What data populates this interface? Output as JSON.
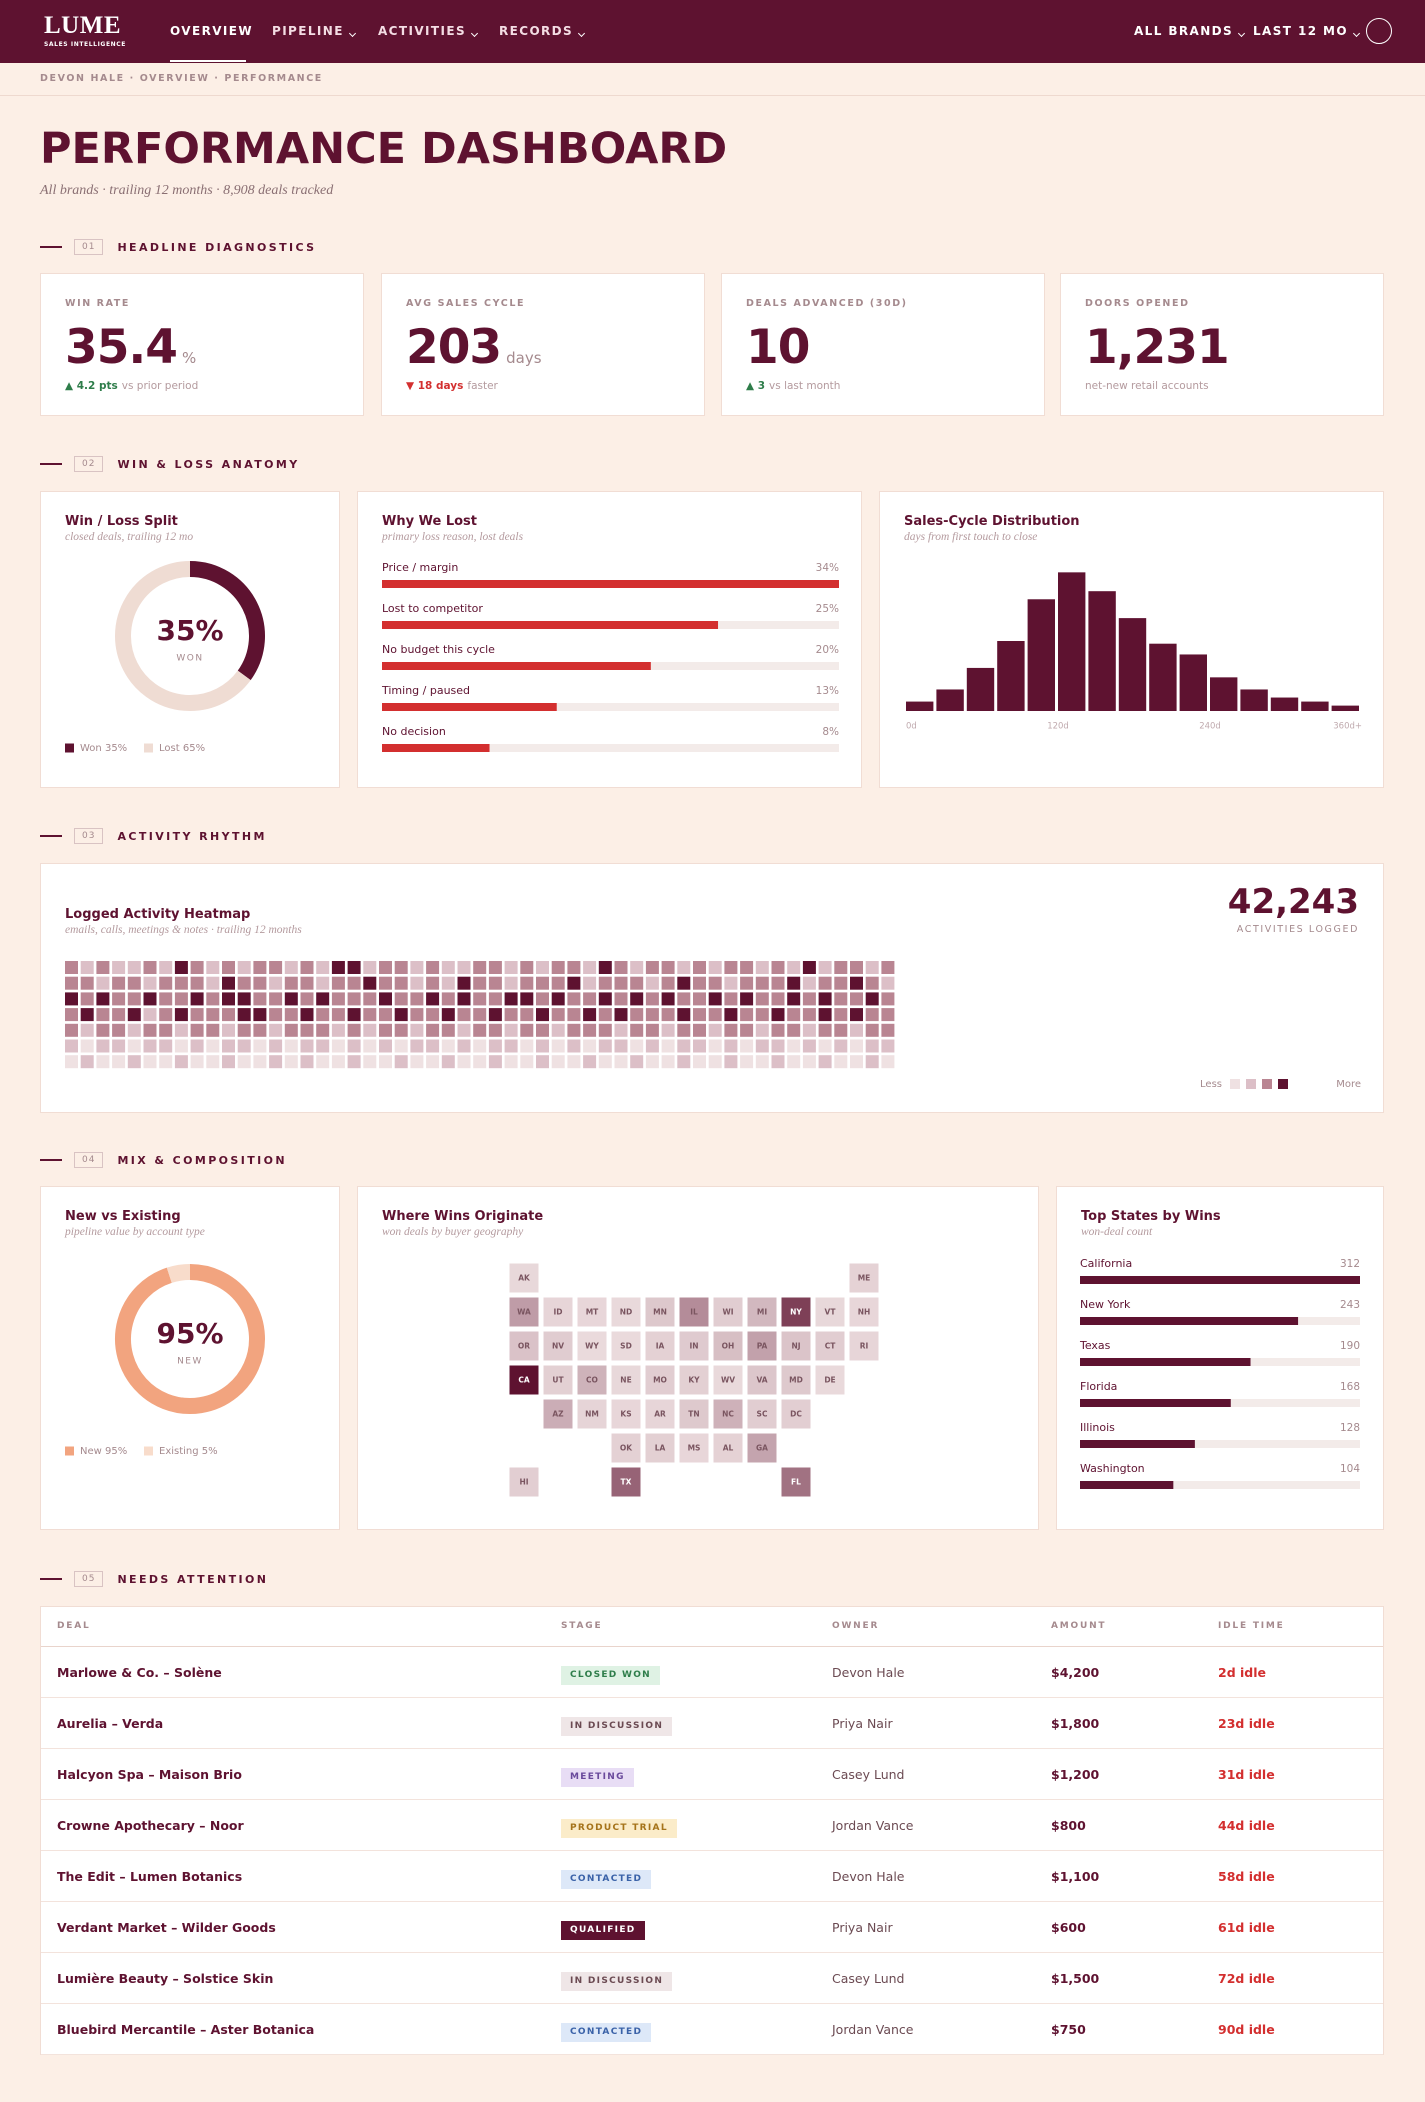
{
  "nav": {
    "brand": "LUME",
    "tagline": "SALES INTELLIGENCE",
    "links": [
      "OVERVIEW",
      "PIPELINE",
      "ACTIVITIES",
      "RECORDS"
    ],
    "filters": [
      "ALL BRANDS",
      "LAST 12 MO"
    ]
  },
  "breadcrumb": "DEVON HALE · OVERVIEW · PERFORMANCE",
  "header": {
    "title": "PERFORMANCE DASHBOARD",
    "subtitle": "All brands · trailing 12 months · 8,908 deals tracked"
  },
  "sections": [
    {
      "number": "01",
      "title": "HEADLINE DIAGNOSTICS"
    },
    {
      "number": "02",
      "title": "WIN & LOSS ANATOMY"
    },
    {
      "number": "03",
      "title": "ACTIVITY RHYTHM"
    },
    {
      "number": "04",
      "title": "MIX & COMPOSITION"
    },
    {
      "number": "05",
      "title": "NEEDS ATTENTION"
    }
  ],
  "kpis": [
    {
      "label": "WIN RATE",
      "value": "35.4",
      "unit": "%",
      "delta": "▲ 4.2 pts",
      "note": "vs prior period",
      "delta_color": "#2e7d4a"
    },
    {
      "label": "AVG SALES CYCLE",
      "value": "203",
      "unit": "days",
      "delta": "▼ 18 days",
      "note": "faster",
      "delta_color": "#d32f2f"
    },
    {
      "label": "DEALS ADVANCED (30D)",
      "value": "10",
      "delta": "▲ 3",
      "note": "vs last month",
      "delta_color": "#2e7d4a"
    },
    {
      "label": "DOORS OPENED",
      "value": "1,231",
      "note": "net-new retail accounts"
    }
  ],
  "charts": {
    "win_loss": {
      "type": "pie",
      "title": "Win / Loss Split",
      "subtitle": "closed deals, trailing 12 mo",
      "center_label": "WON",
      "categories": [
        "Won",
        "Lost"
      ],
      "values": [
        35,
        65
      ],
      "value_labels": [
        "35%",
        "65%"
      ],
      "colors": [
        "#5e1230",
        "#efdcd3"
      ]
    },
    "loss_reasons": {
      "type": "bar",
      "title": "Why We Lost",
      "subtitle": "primary loss reason, lost deals",
      "categories": [
        "Price / margin",
        "Lost to competitor",
        "No budget this cycle",
        "Timing / paused",
        "No decision"
      ],
      "values": [
        34,
        25,
        20,
        13,
        8
      ],
      "value_labels": [
        "34%",
        "25%",
        "20%",
        "13%",
        "8%"
      ],
      "xlim": [
        0,
        34
      ],
      "color": "#d32f2f",
      "track_color": "#f3ebe9"
    },
    "cycle": {
      "type": "histogram",
      "title": "Sales-Cycle Distribution",
      "subtitle": "days from first touch to close",
      "bins": [
        0,
        24,
        48,
        72,
        96,
        120,
        144,
        168,
        192,
        216,
        240,
        264,
        288,
        312,
        336,
        360
      ],
      "values": [
        35,
        80,
        160,
        260,
        415,
        515,
        445,
        345,
        250,
        210,
        125,
        80,
        50,
        35,
        20
      ],
      "ylim": [
        0,
        520
      ],
      "xticks": [
        {
          "value": 0,
          "label": "0d"
        },
        {
          "value": 120,
          "label": "120d"
        },
        {
          "value": 240,
          "label": "240d"
        },
        {
          "value": 360,
          "label": "360d+"
        }
      ],
      "color": "#5e1230"
    },
    "activity": {
      "type": "heatmap",
      "title": "Logged Activity Heatmap",
      "subtitle": "emails, calls, meetings & notes · trailing 12 months",
      "total": "42,243",
      "total_label": "ACTIVITIES LOGGED",
      "legend": [
        "Less",
        "More"
      ],
      "colors": [
        "#efe1e2",
        "#dcbfc7",
        "#b98592",
        "#5e1230"
      ],
      "values": [
        [
          2,
          1,
          2,
          1,
          1,
          2,
          1,
          3,
          2,
          1,
          2,
          1,
          2,
          2,
          1,
          2,
          1,
          3,
          3,
          1,
          2,
          2,
          1,
          2,
          1,
          1,
          2,
          2,
          1,
          2,
          1,
          2,
          2,
          1,
          3,
          2,
          1,
          2,
          2,
          1,
          2,
          1,
          2,
          2,
          1,
          2,
          1,
          3,
          1,
          2,
          2,
          1,
          2
        ],
        [
          2,
          2,
          1,
          2,
          2,
          1,
          2,
          2,
          2,
          1,
          3,
          2,
          2,
          1,
          2,
          2,
          1,
          2,
          2,
          3,
          2,
          2,
          1,
          2,
          1,
          3,
          2,
          2,
          1,
          2,
          2,
          2,
          3,
          1,
          2,
          2,
          2,
          1,
          2,
          3,
          2,
          2,
          1,
          2,
          2,
          2,
          3,
          1,
          2,
          2,
          3,
          2,
          1
        ],
        [
          3,
          2,
          3,
          2,
          2,
          3,
          2,
          2,
          3,
          2,
          3,
          3,
          2,
          2,
          3,
          2,
          3,
          2,
          2,
          2,
          3,
          2,
          2,
          3,
          2,
          3,
          2,
          2,
          3,
          3,
          2,
          3,
          2,
          2,
          3,
          2,
          3,
          2,
          3,
          2,
          2,
          3,
          2,
          3,
          2,
          2,
          3,
          2,
          3,
          2,
          2,
          3,
          2
        ],
        [
          2,
          3,
          2,
          2,
          3,
          1,
          2,
          3,
          2,
          2,
          2,
          3,
          3,
          2,
          2,
          3,
          2,
          2,
          3,
          2,
          2,
          3,
          2,
          2,
          3,
          2,
          2,
          3,
          2,
          2,
          3,
          2,
          2,
          3,
          2,
          3,
          2,
          2,
          2,
          3,
          2,
          2,
          3,
          2,
          2,
          3,
          2,
          2,
          3,
          2,
          3,
          2,
          2
        ],
        [
          2,
          1,
          2,
          2,
          1,
          2,
          2,
          1,
          2,
          2,
          1,
          2,
          2,
          1,
          2,
          2,
          2,
          1,
          2,
          1,
          2,
          2,
          1,
          2,
          2,
          1,
          2,
          2,
          1,
          2,
          2,
          1,
          2,
          2,
          2,
          1,
          2,
          2,
          1,
          2,
          2,
          1,
          2,
          2,
          1,
          2,
          2,
          1,
          2,
          2,
          1,
          2,
          2
        ],
        [
          1,
          0,
          1,
          1,
          0,
          1,
          1,
          0,
          1,
          0,
          1,
          1,
          0,
          1,
          0,
          1,
          1,
          0,
          1,
          0,
          1,
          0,
          1,
          1,
          0,
          1,
          0,
          1,
          1,
          0,
          1,
          0,
          1,
          0,
          1,
          1,
          0,
          1,
          0,
          1,
          1,
          0,
          1,
          0,
          1,
          1,
          0,
          1,
          0,
          1,
          0,
          1,
          1
        ],
        [
          0,
          1,
          0,
          0,
          1,
          0,
          0,
          1,
          0,
          0,
          1,
          0,
          0,
          1,
          0,
          1,
          0,
          0,
          1,
          0,
          0,
          1,
          0,
          0,
          1,
          0,
          0,
          1,
          0,
          0,
          1,
          0,
          0,
          1,
          0,
          0,
          1,
          0,
          0,
          1,
          0,
          0,
          1,
          0,
          0,
          1,
          0,
          0,
          1,
          0,
          0,
          1,
          0
        ]
      ]
    },
    "new_existing": {
      "type": "pie",
      "title": "New vs Existing",
      "subtitle": "pipeline value by account type",
      "center_label": "NEW",
      "categories": [
        "New",
        "Existing"
      ],
      "values": [
        95,
        5
      ],
      "value_labels": [
        "95%",
        "5%"
      ],
      "colors": [
        "#f2a47f",
        "#f8dccb"
      ]
    },
    "wins_map": {
      "type": "tile-map",
      "title": "Where Wins Originate",
      "subtitle": "won deals by buyer geography",
      "colors": [
        "#efe1e2",
        "#5e1230"
      ],
      "rows": [
        [
          "AK",
          null,
          null,
          null,
          null,
          null,
          null,
          null,
          null,
          null,
          "ME"
        ],
        [
          "WA",
          "ID",
          "MT",
          "ND",
          "MN",
          "IL",
          "WI",
          "MI",
          "NY",
          "VT",
          "NH"
        ],
        [
          "OR",
          "NV",
          "WY",
          "SD",
          "IA",
          "IN",
          "OH",
          "PA",
          "NJ",
          "CT",
          "RI"
        ],
        [
          "CA",
          "UT",
          "CO",
          "NE",
          "MO",
          "KY",
          "WV",
          "VA",
          "MD",
          "DE",
          null
        ],
        [
          null,
          "AZ",
          "NM",
          "KS",
          "AR",
          "TN",
          "NC",
          "SC",
          "DC",
          null,
          null
        ],
        [
          null,
          null,
          null,
          "OK",
          "LA",
          "MS",
          "AL",
          "GA",
          null,
          null,
          null
        ],
        [
          "HI",
          null,
          null,
          "TX",
          null,
          null,
          null,
          null,
          "FL",
          null,
          null
        ]
      ],
      "values": [
        [
          14,
          null,
          null,
          null,
          null,
          null,
          null,
          null,
          null,
          null,
          22
        ],
        [
          104,
          18,
          16,
          12,
          38,
          128,
          30,
          62,
          243,
          14,
          16
        ],
        [
          46,
          32,
          10,
          11,
          24,
          34,
          52,
          96,
          44,
          30,
          18
        ],
        [
          312,
          26,
          70,
          14,
          30,
          26,
          12,
          40,
          36,
          12,
          null
        ],
        [
          null,
          78,
          20,
          16,
          18,
          36,
          72,
          30,
          28,
          null,
          null
        ],
        [
          null,
          null,
          null,
          24,
          26,
          16,
          22,
          92,
          null,
          null,
          null
        ],
        [
          28,
          null,
          null,
          190,
          null,
          null,
          null,
          null,
          168,
          null,
          null
        ]
      ]
    },
    "top_states": {
      "type": "bar",
      "title": "Top States by Wins",
      "subtitle": "won-deal count",
      "categories": [
        "California",
        "New York",
        "Texas",
        "Florida",
        "Illinois",
        "Washington"
      ],
      "values": [
        312,
        243,
        190,
        168,
        128,
        104
      ],
      "xlim": [
        0,
        312
      ],
      "color": "#5e1230",
      "track_color": "#f3ebe9"
    }
  },
  "table": {
    "columns": [
      "DEAL",
      "STAGE",
      "OWNER",
      "AMOUNT",
      "IDLE TIME"
    ],
    "rows": [
      {
        "deal": "Marlowe & Co. – Solène",
        "stage": "CLOSED WON",
        "owner": "Devon Hale",
        "amount": "$4,200",
        "idle": "2d idle",
        "badge_bg": "#dff2e4",
        "badge_fg": "#2e7d4a"
      },
      {
        "deal": "Aurelia – Verda",
        "stage": "IN DISCUSSION",
        "owner": "Priya Nair",
        "amount": "$1,800",
        "idle": "23d idle",
        "badge_bg": "#efe6e7",
        "badge_fg": "#6b4a52"
      },
      {
        "deal": "Halcyon Spa – Maison Brio",
        "stage": "MEETING",
        "owner": "Casey Lund",
        "amount": "$1,200",
        "idle": "31d idle",
        "badge_bg": "#e8ddf5",
        "badge_fg": "#6a4a9c"
      },
      {
        "deal": "Crowne Apothecary – Noor",
        "stage": "PRODUCT TRIAL",
        "owner": "Jordan Vance",
        "amount": "$800",
        "idle": "44d idle",
        "badge_bg": "#fbecc9",
        "badge_fg": "#a5731a"
      },
      {
        "deal": "The Edit – Lumen Botanics",
        "stage": "CONTACTED",
        "owner": "Devon Hale",
        "amount": "$1,100",
        "idle": "58d idle",
        "badge_bg": "#dde8f8",
        "badge_fg": "#3a62a8"
      },
      {
        "deal": "Verdant Market – Wilder Goods",
        "stage": "QUALIFIED",
        "owner": "Priya Nair",
        "amount": "$600",
        "idle": "61d idle",
        "badge_bg": "#5e1230",
        "badge_fg": "#ffffff"
      },
      {
        "deal": "Lumière Beauty – Solstice Skin",
        "stage": "IN DISCUSSION",
        "owner": "Casey Lund",
        "amount": "$1,500",
        "idle": "72d idle",
        "badge_bg": "#efe6e7",
        "badge_fg": "#6b4a52"
      },
      {
        "deal": "Bluebird Mercantile – Aster Botanica",
        "stage": "CONTACTED",
        "owner": "Jordan Vance",
        "amount": "$750",
        "idle": "90d idle",
        "badge_bg": "#dde8f8",
        "badge_fg": "#3a62a8"
      }
    ]
  }
}
